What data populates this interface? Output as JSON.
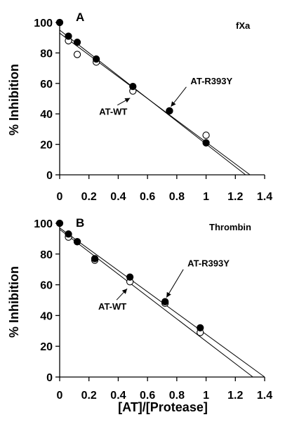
{
  "chart_data": [
    {
      "type": "scatter",
      "panel_letter": "A",
      "panel_label": "fXa",
      "ylabel": "% Inhibition",
      "xlabel": "",
      "xlim": [
        0,
        1.4
      ],
      "ylim": [
        0,
        100
      ],
      "x_ticks": [
        "0",
        "0.2",
        "0.4",
        "0.6",
        "0.8",
        "1",
        "1.2",
        "1.4"
      ],
      "y_ticks": [
        "0",
        "20",
        "40",
        "60",
        "80",
        "100"
      ],
      "series": [
        {
          "name": "AT-WT",
          "marker": "open-circle",
          "x": [
            0.06,
            0.12,
            0.25,
            0.5,
            0.75,
            1.0
          ],
          "y": [
            88,
            79,
            74,
            55,
            42,
            26
          ],
          "fit": {
            "x0": 0.0,
            "y0": 93,
            "x1": 1.3,
            "y1": 0
          }
        },
        {
          "name": "AT-R393Y",
          "marker": "filled-circle",
          "x": [
            0.0,
            0.06,
            0.12,
            0.25,
            0.5,
            0.75,
            1.0
          ],
          "y": [
            100,
            91,
            87,
            76,
            58,
            42,
            21
          ],
          "fit": {
            "x0": 0.0,
            "y0": 95,
            "x1": 1.27,
            "y1": 0
          }
        }
      ],
      "annotations": [
        {
          "text": "AT-WT",
          "x": 0.5,
          "y": 55
        },
        {
          "text": "AT-R393Y",
          "x": 0.75,
          "y": 42
        }
      ]
    },
    {
      "type": "scatter",
      "panel_letter": "B",
      "panel_label": "Thrombin",
      "ylabel": "% Inhibition",
      "xlabel": "[AT]/[Protease]",
      "xlim": [
        0,
        1.4
      ],
      "ylim": [
        0,
        100
      ],
      "x_ticks": [
        "0",
        "0.2",
        "0.4",
        "0.6",
        "0.8",
        "1",
        "1.2",
        "1.4"
      ],
      "y_ticks": [
        "0",
        "20",
        "40",
        "60",
        "80",
        "100"
      ],
      "series": [
        {
          "name": "AT-WT",
          "marker": "open-circle",
          "x": [
            0.06,
            0.12,
            0.24,
            0.48,
            0.72,
            0.96
          ],
          "y": [
            91,
            88,
            76,
            62,
            48,
            29
          ],
          "fit": {
            "x0": 0.0,
            "y0": 96,
            "x1": 1.32,
            "y1": 0
          }
        },
        {
          "name": "AT-R393Y",
          "marker": "filled-circle",
          "x": [
            0.0,
            0.06,
            0.12,
            0.24,
            0.48,
            0.72,
            0.96
          ],
          "y": [
            100,
            93,
            88,
            77,
            65,
            49,
            32
          ],
          "fit": {
            "x0": 0.0,
            "y0": 97,
            "x1": 1.4,
            "y1": 0
          }
        }
      ],
      "annotations": [
        {
          "text": "AT-WT",
          "x": 0.48,
          "y": 62
        },
        {
          "text": "AT-R393Y",
          "x": 0.72,
          "y": 49
        }
      ]
    }
  ]
}
